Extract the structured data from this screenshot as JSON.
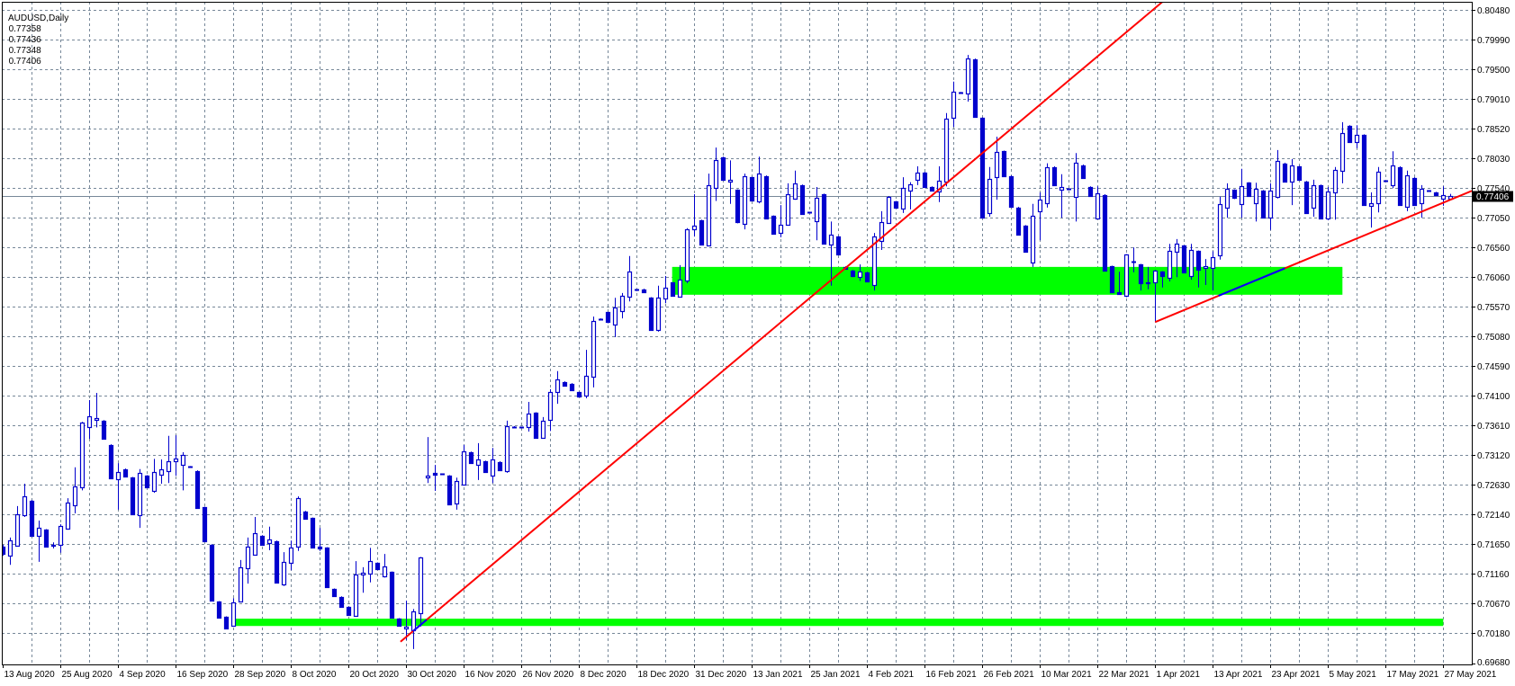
{
  "header": {
    "symbol_timeframe": "AUDUSD,Daily",
    "open": "0.77358",
    "high": "0.77436",
    "low": "0.77348",
    "close": "0.77406"
  },
  "chart_data": {
    "type": "candlestick",
    "title": "AUDUSD,Daily",
    "ylim": [
      0.69665,
      0.80608
    ],
    "grid": true,
    "y_ticks": [
      "0.80480",
      "0.79990",
      "0.79500",
      "0.79010",
      "0.78520",
      "0.78030",
      "0.77540",
      "0.77050",
      "0.76560",
      "0.76060",
      "0.75570",
      "0.75080",
      "0.74590",
      "0.74100",
      "0.73610",
      "0.73120",
      "0.72630",
      "0.72140",
      "0.71650",
      "0.71160",
      "0.70670",
      "0.70180",
      "0.69680"
    ],
    "x_ticks": [
      "13 Aug 2020",
      "25 Aug 2020",
      "4 Sep 2020",
      "16 Sep 2020",
      "28 Sep 2020",
      "8 Oct 2020",
      "20 Oct 2020",
      "30 Oct 2020",
      "16 Nov 2020",
      "26 Nov 2020",
      "8 Dec 2020",
      "18 Dec 2020",
      "31 Dec 2020",
      "13 Jan 2021",
      "25 Jan 2021",
      "4 Feb 2021",
      "16 Feb 2021",
      "26 Feb 2021",
      "10 Mar 2021",
      "22 Mar 2021",
      "1 Apr 2021",
      "13 Apr 2021",
      "23 Apr 2021",
      "5 May 2021",
      "17 May 2021",
      "27 May 2021"
    ],
    "current_price": "0.77406",
    "candles_ohlc": [
      [
        0.7161,
        0.7164,
        0.7146,
        0.7149
      ],
      [
        0.7146,
        0.7176,
        0.7131,
        0.7171
      ],
      [
        0.7162,
        0.7228,
        0.7162,
        0.7214
      ],
      [
        0.7213,
        0.7265,
        0.721,
        0.7244
      ],
      [
        0.7237,
        0.7238,
        0.7178,
        0.7179
      ],
      [
        0.7179,
        0.7204,
        0.7136,
        0.7192
      ],
      [
        0.7189,
        0.719,
        0.716,
        0.7161
      ],
      [
        0.7162,
        0.7168,
        0.7158,
        0.7164
      ],
      [
        0.7164,
        0.7198,
        0.7151,
        0.7195
      ],
      [
        0.7191,
        0.7241,
        0.7189,
        0.7234
      ],
      [
        0.7229,
        0.7292,
        0.7216,
        0.726
      ],
      [
        0.7259,
        0.7367,
        0.7254,
        0.7366
      ],
      [
        0.7358,
        0.7403,
        0.7339,
        0.7376
      ],
      [
        0.737,
        0.7415,
        0.7358,
        0.7373
      ],
      [
        0.7369,
        0.737,
        0.7338,
        0.7339
      ],
      [
        0.7329,
        0.733,
        0.7273,
        0.7274
      ],
      [
        0.7272,
        0.7299,
        0.7222,
        0.7284
      ],
      [
        0.7289,
        0.729,
        0.7276,
        0.7277
      ],
      [
        0.7275,
        0.7276,
        0.7214,
        0.7214
      ],
      [
        0.7213,
        0.7289,
        0.7192,
        0.7283
      ],
      [
        0.7278,
        0.7279,
        0.7258,
        0.7259
      ],
      [
        0.7253,
        0.7306,
        0.725,
        0.7284
      ],
      [
        0.728,
        0.7305,
        0.7265,
        0.7289
      ],
      [
        0.7286,
        0.7344,
        0.7266,
        0.7302
      ],
      [
        0.7302,
        0.7345,
        0.7278,
        0.7307
      ],
      [
        0.7296,
        0.7317,
        0.7254,
        0.7312
      ],
      [
        0.7293,
        0.7294,
        0.7292,
        0.7293
      ],
      [
        0.7286,
        0.7287,
        0.7224,
        0.7225
      ],
      [
        0.7226,
        0.7227,
        0.7169,
        0.717
      ],
      [
        0.7164,
        0.7165,
        0.7071,
        0.7072
      ],
      [
        0.707,
        0.7071,
        0.7043,
        0.7044
      ],
      [
        0.7045,
        0.7046,
        0.7025,
        0.7026
      ],
      [
        0.703,
        0.7076,
        0.7029,
        0.7069
      ],
      [
        0.707,
        0.7139,
        0.7069,
        0.7127
      ],
      [
        0.7125,
        0.7176,
        0.71,
        0.7161
      ],
      [
        0.7148,
        0.721,
        0.7147,
        0.7183
      ],
      [
        0.7179,
        0.718,
        0.7163,
        0.7164
      ],
      [
        0.7167,
        0.7194,
        0.7155,
        0.7173
      ],
      [
        0.717,
        0.7171,
        0.7101,
        0.7102
      ],
      [
        0.7099,
        0.7152,
        0.7096,
        0.7136
      ],
      [
        0.7134,
        0.7171,
        0.7122,
        0.7159
      ],
      [
        0.7161,
        0.7244,
        0.7154,
        0.7241
      ],
      [
        0.7219,
        0.722,
        0.7206,
        0.7207
      ],
      [
        0.7208,
        0.7209,
        0.7158,
        0.7159
      ],
      [
        0.7161,
        0.7192,
        0.7154,
        0.7158
      ],
      [
        0.7159,
        0.716,
        0.7093,
        0.7094
      ],
      [
        0.7091,
        0.7092,
        0.7078,
        0.7079
      ],
      [
        0.7078,
        0.7079,
        0.7061,
        0.7061
      ],
      [
        0.7061,
        0.7062,
        0.7047,
        0.7048
      ],
      [
        0.7047,
        0.7137,
        0.7046,
        0.7115
      ],
      [
        0.7115,
        0.7127,
        0.7085,
        0.7118
      ],
      [
        0.7116,
        0.7159,
        0.7102,
        0.7137
      ],
      [
        0.7134,
        0.7135,
        0.7123,
        0.7124
      ],
      [
        0.7111,
        0.7149,
        0.711,
        0.7128
      ],
      [
        0.7119,
        0.712,
        0.7043,
        0.7044
      ],
      [
        0.7042,
        0.7043,
        0.703,
        0.703
      ],
      [
        0.7026,
        0.7072,
        0.7007,
        0.7029
      ],
      [
        0.7023,
        0.7058,
        0.6992,
        0.7054
      ],
      [
        0.7051,
        0.7144,
        0.7029,
        0.7143
      ],
      [
        0.7275,
        0.7342,
        0.7266,
        0.7278
      ],
      [
        0.7283,
        0.7296,
        0.7253,
        0.728
      ],
      [
        0.7281,
        0.7282,
        0.728,
        0.7281
      ],
      [
        0.7278,
        0.7279,
        0.723,
        0.7231
      ],
      [
        0.7232,
        0.7275,
        0.7222,
        0.7269
      ],
      [
        0.7263,
        0.7329,
        0.7262,
        0.7318
      ],
      [
        0.7317,
        0.7318,
        0.7298,
        0.7299
      ],
      [
        0.7296,
        0.7332,
        0.7271,
        0.7305
      ],
      [
        0.7302,
        0.7303,
        0.7284,
        0.7284
      ],
      [
        0.7278,
        0.7324,
        0.7266,
        0.7305
      ],
      [
        0.7301,
        0.7302,
        0.7287,
        0.7287
      ],
      [
        0.7286,
        0.7369,
        0.7283,
        0.736
      ],
      [
        0.7358,
        0.736,
        0.7357,
        0.7358
      ],
      [
        0.7358,
        0.7359,
        0.7357,
        0.7359
      ],
      [
        0.7358,
        0.74,
        0.7351,
        0.7381
      ],
      [
        0.7382,
        0.7383,
        0.734,
        0.7341
      ],
      [
        0.7341,
        0.7375,
        0.734,
        0.7369
      ],
      [
        0.737,
        0.7421,
        0.7352,
        0.7416
      ],
      [
        0.7416,
        0.7451,
        0.7397,
        0.7437
      ],
      [
        0.7433,
        0.7434,
        0.7426,
        0.7427
      ],
      [
        0.743,
        0.7431,
        0.7419,
        0.7419
      ],
      [
        0.7416,
        0.7417,
        0.7408,
        0.7409
      ],
      [
        0.741,
        0.7486,
        0.7406,
        0.7443
      ],
      [
        0.7442,
        0.7541,
        0.7424,
        0.7534
      ],
      [
        0.7536,
        0.7538,
        0.7535,
        0.7537
      ],
      [
        0.7548,
        0.7549,
        0.753,
        0.7531
      ],
      [
        0.7528,
        0.7572,
        0.7507,
        0.7556
      ],
      [
        0.755,
        0.758,
        0.7538,
        0.7575
      ],
      [
        0.7574,
        0.7641,
        0.7566,
        0.7615
      ],
      [
        0.7584,
        0.7586,
        0.7583,
        0.7585
      ],
      [
        0.7586,
        0.7587,
        0.758,
        0.7581
      ],
      [
        0.7572,
        0.7573,
        0.7518,
        0.7519
      ],
      [
        0.7519,
        0.7592,
        0.7516,
        0.7572
      ],
      [
        0.7571,
        0.7608,
        0.7563,
        0.7589
      ],
      [
        0.7597,
        0.7598,
        0.7575,
        0.7575
      ],
      [
        0.7574,
        0.7626,
        0.7573,
        0.7602
      ],
      [
        0.76,
        0.7687,
        0.7596,
        0.7685
      ],
      [
        0.7685,
        0.7743,
        0.7673,
        0.7691
      ],
      [
        0.77,
        0.7701,
        0.7659,
        0.766
      ],
      [
        0.7658,
        0.7777,
        0.7657,
        0.7758
      ],
      [
        0.7753,
        0.782,
        0.7732,
        0.7799
      ],
      [
        0.7804,
        0.7805,
        0.7766,
        0.7767
      ],
      [
        0.7764,
        0.7799,
        0.7727,
        0.7767
      ],
      [
        0.775,
        0.7751,
        0.7695,
        0.7696
      ],
      [
        0.7694,
        0.7777,
        0.7685,
        0.7773
      ],
      [
        0.7771,
        0.7772,
        0.7732,
        0.7733
      ],
      [
        0.7731,
        0.7805,
        0.7728,
        0.7777
      ],
      [
        0.7773,
        0.7774,
        0.7702,
        0.7703
      ],
      [
        0.7707,
        0.7708,
        0.7677,
        0.7678
      ],
      [
        0.7679,
        0.7725,
        0.7672,
        0.7693
      ],
      [
        0.7693,
        0.7761,
        0.7692,
        0.7743
      ],
      [
        0.7736,
        0.7782,
        0.7734,
        0.7761
      ],
      [
        0.7758,
        0.7759,
        0.771,
        0.771
      ],
      [
        0.7713,
        0.7714,
        0.7712,
        0.7713
      ],
      [
        0.7698,
        0.7755,
        0.7667,
        0.7737
      ],
      [
        0.7743,
        0.7744,
        0.7661,
        0.7661
      ],
      [
        0.766,
        0.7698,
        0.7592,
        0.7676
      ],
      [
        0.7673,
        0.7674,
        0.7643,
        0.7644
      ],
      [
        0.7623,
        0.7624,
        0.7619,
        0.762
      ],
      [
        0.7617,
        0.7618,
        0.7606,
        0.7608
      ],
      [
        0.7606,
        0.7627,
        0.76,
        0.7615
      ],
      [
        0.7614,
        0.7615,
        0.7598,
        0.7599
      ],
      [
        0.7593,
        0.7679,
        0.7584,
        0.7673
      ],
      [
        0.7666,
        0.7715,
        0.7651,
        0.7697
      ],
      [
        0.7696,
        0.774,
        0.7694,
        0.7739
      ],
      [
        0.7731,
        0.7732,
        0.772,
        0.7721
      ],
      [
        0.7719,
        0.7771,
        0.7712,
        0.7753
      ],
      [
        0.7749,
        0.7763,
        0.7718,
        0.7759
      ],
      [
        0.7767,
        0.7789,
        0.7758,
        0.7779
      ],
      [
        0.7779,
        0.778,
        0.7754,
        0.7755
      ],
      [
        0.7755,
        0.7756,
        0.7748,
        0.7749
      ],
      [
        0.7747,
        0.7789,
        0.773,
        0.7765
      ],
      [
        0.7764,
        0.7877,
        0.7756,
        0.7868
      ],
      [
        0.7869,
        0.7929,
        0.7854,
        0.7912
      ],
      [
        0.7911,
        0.7912,
        0.7909,
        0.791
      ],
      [
        0.7909,
        0.7973,
        0.7896,
        0.7967
      ],
      [
        0.7966,
        0.7967,
        0.787,
        0.7871
      ],
      [
        0.7869,
        0.787,
        0.7703,
        0.7704
      ],
      [
        0.7712,
        0.7788,
        0.7706,
        0.7768
      ],
      [
        0.7771,
        0.7838,
        0.7734,
        0.7813
      ],
      [
        0.7814,
        0.7815,
        0.7772,
        0.7773
      ],
      [
        0.7773,
        0.7774,
        0.7721,
        0.7722
      ],
      [
        0.7721,
        0.7722,
        0.7675,
        0.7676
      ],
      [
        0.7691,
        0.7692,
        0.7647,
        0.7648
      ],
      [
        0.763,
        0.7727,
        0.7623,
        0.7707
      ],
      [
        0.7715,
        0.7746,
        0.7667,
        0.7734
      ],
      [
        0.7728,
        0.7794,
        0.7721,
        0.7788
      ],
      [
        0.7788,
        0.7789,
        0.7757,
        0.7758
      ],
      [
        0.775,
        0.7776,
        0.7704,
        0.7755
      ],
      [
        0.7752,
        0.7753,
        0.7751,
        0.7752
      ],
      [
        0.7739,
        0.7811,
        0.7698,
        0.7795
      ],
      [
        0.7791,
        0.7792,
        0.7769,
        0.777
      ],
      [
        0.7755,
        0.7756,
        0.7739,
        0.774
      ],
      [
        0.7704,
        0.7756,
        0.7703,
        0.7745
      ],
      [
        0.7742,
        0.7743,
        0.7617,
        0.7618
      ],
      [
        0.7624,
        0.7625,
        0.758,
        0.7581
      ],
      [
        0.7581,
        0.7615,
        0.7577,
        0.7578
      ],
      [
        0.7575,
        0.7644,
        0.7573,
        0.7644
      ],
      [
        0.7632,
        0.7655,
        0.7614,
        0.7632
      ],
      [
        0.7627,
        0.7628,
        0.7584,
        0.7596
      ],
      [
        0.7598,
        0.7623,
        0.7586,
        0.7596
      ],
      [
        0.7598,
        0.7618,
        0.7532,
        0.7617
      ],
      [
        0.7615,
        0.7616,
        0.7589,
        0.7608
      ],
      [
        0.7605,
        0.7661,
        0.7599,
        0.7649
      ],
      [
        0.7648,
        0.7669,
        0.7606,
        0.7661
      ],
      [
        0.7658,
        0.7659,
        0.7613,
        0.7614
      ],
      [
        0.7608,
        0.7661,
        0.7602,
        0.7651
      ],
      [
        0.7649,
        0.765,
        0.7589,
        0.7618
      ],
      [
        0.7621,
        0.7636,
        0.7593,
        0.7624
      ],
      [
        0.7621,
        0.7649,
        0.7584,
        0.7639
      ],
      [
        0.7642,
        0.7739,
        0.7635,
        0.7727
      ],
      [
        0.7721,
        0.7761,
        0.7704,
        0.7752
      ],
      [
        0.775,
        0.7751,
        0.7735,
        0.7736
      ],
      [
        0.7727,
        0.7785,
        0.7704,
        0.7756
      ],
      [
        0.7762,
        0.7763,
        0.7739,
        0.774
      ],
      [
        0.7728,
        0.7762,
        0.7698,
        0.7752
      ],
      [
        0.7749,
        0.775,
        0.7704,
        0.7704
      ],
      [
        0.7704,
        0.7761,
        0.7684,
        0.7749
      ],
      [
        0.7739,
        0.7816,
        0.7736,
        0.7798
      ],
      [
        0.7794,
        0.7795,
        0.7764,
        0.7765
      ],
      [
        0.7764,
        0.7801,
        0.7725,
        0.7791
      ],
      [
        0.7789,
        0.779,
        0.7766,
        0.7767
      ],
      [
        0.7764,
        0.7765,
        0.7711,
        0.7712
      ],
      [
        0.7721,
        0.7767,
        0.7706,
        0.7758
      ],
      [
        0.7758,
        0.7759,
        0.7702,
        0.7703
      ],
      [
        0.7703,
        0.7755,
        0.77,
        0.7747
      ],
      [
        0.7746,
        0.7788,
        0.7701,
        0.7783
      ],
      [
        0.7782,
        0.7862,
        0.7761,
        0.7844
      ],
      [
        0.7856,
        0.7857,
        0.7828,
        0.7829
      ],
      [
        0.7829,
        0.7857,
        0.7819,
        0.7841
      ],
      [
        0.7841,
        0.7842,
        0.7724,
        0.7725
      ],
      [
        0.7724,
        0.7746,
        0.7688,
        0.7728
      ],
      [
        0.7728,
        0.7788,
        0.7713,
        0.778
      ],
      [
        0.7765,
        0.7766,
        0.7764,
        0.7765
      ],
      [
        0.7758,
        0.7814,
        0.7753,
        0.7791
      ],
      [
        0.7788,
        0.7789,
        0.7725,
        0.7725
      ],
      [
        0.7722,
        0.7782,
        0.7715,
        0.7774
      ],
      [
        0.777,
        0.7771,
        0.7724,
        0.7725
      ],
      [
        0.7728,
        0.7758,
        0.7704,
        0.7752
      ],
      [
        0.7749,
        0.775,
        0.7748,
        0.7749
      ],
      [
        0.7746,
        0.7747,
        0.7741,
        0.7742
      ],
      [
        0.7736,
        0.7756,
        0.7724,
        0.7742
      ],
      [
        0.77358,
        0.77436,
        0.77348,
        0.77406
      ]
    ],
    "trendlines": [
      {
        "from": {
          "date": "2020-10-29",
          "price": 0.7004
        },
        "to": {
          "date": "2021-04-03",
          "price": 0.8064
        },
        "color": "#FF0000",
        "ray": false,
        "highlight": {
          "from_date": "2020-11-01",
          "to_date": "2020-11-05",
          "color": "#0000FF"
        }
      },
      {
        "from": {
          "date": "2021-04-01",
          "price": 0.7532
        },
        "to": {
          "date": "2021-05-27",
          "price": 0.7729
        },
        "color": "#FF0000",
        "ray": true,
        "highlight": {
          "from_date": "2021-04-14",
          "to_date": "2021-04-26",
          "color": "#0000FF"
        }
      }
    ],
    "rectangles": [
      {
        "from_date": "2020-12-26",
        "to_date": "2021-05-08",
        "price_low": 0.7577,
        "price_high": 0.7623,
        "color": "#00FF00"
      },
      {
        "from_date": "2020-09-28",
        "to_date": "2021-05-27",
        "price_low": 0.703,
        "price_high": 0.7042,
        "color": "#00FF00"
      }
    ],
    "colors": {
      "candle": "#0000CD",
      "bull_fill": "#FFFFFF",
      "grid": "#778899",
      "current_price_line": "#778899",
      "price_box": "#000000",
      "background": "#FFFFFF"
    }
  }
}
